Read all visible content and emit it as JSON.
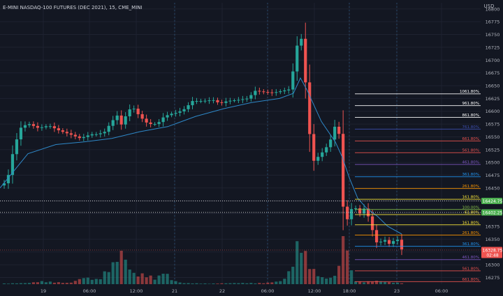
{
  "header": {
    "title": "E-MINI NASDAQ-100 FUTURES (DEC 2021), 15, CME_MINI"
  },
  "colors": {
    "background": "#131722",
    "grid": "#1e2230",
    "up": "#26a69a",
    "down": "#ef5350",
    "ma": "#2e88c8",
    "axis_text": "#b2b5be"
  },
  "chart_data": {
    "type": "candlestick",
    "y_axis": {
      "unit": "USD",
      "ylim": [
        16262,
        16812
      ],
      "ticks": [
        16800,
        16775,
        16750,
        16725,
        16700,
        16675,
        16650,
        16625,
        16600,
        16575,
        16550,
        16525,
        16500,
        16475,
        16450,
        16425,
        16400,
        16375,
        16350,
        16325,
        16300,
        16275
      ]
    },
    "x_axis": {
      "ticks": [
        "19",
        "06:00",
        "12:00",
        "21",
        "06:00",
        "22",
        "06:00",
        "12:00",
        "18:00",
        "23",
        "06:00"
      ]
    },
    "price_labels": [
      {
        "value": 16424.75,
        "text": "16424.75",
        "color": "#4caf50"
      },
      {
        "value": 16402.25,
        "text": "16402.25",
        "color": "#4caf50"
      },
      {
        "value": 16328.75,
        "text": "16328.75",
        "subtext": "02:48",
        "color": "#ef5350"
      }
    ],
    "fib_levels": [
      {
        "label": "1061.80%",
        "value": 16634,
        "color": "#ffffff"
      },
      {
        "label": "961.80%",
        "value": 16611,
        "color": "#ffffff"
      },
      {
        "label": "861.80%",
        "value": 16588,
        "color": "#ffffff"
      },
      {
        "label": "761.80%",
        "value": 16565,
        "color": "#3f51b5"
      },
      {
        "label": "661.80%",
        "value": 16542,
        "color": "#ef5350"
      },
      {
        "label": "561.80%",
        "value": 16519,
        "color": "#ef5350"
      },
      {
        "label": "461.80%",
        "value": 16496,
        "color": "#7e57c2"
      },
      {
        "label": "361.80%",
        "value": 16472,
        "color": "#2196f3"
      },
      {
        "label": "261.80%",
        "value": 16449,
        "color": "#ff9800"
      },
      {
        "label": "161.80%",
        "value": 16428,
        "color": "#ffeb3b"
      },
      {
        "label": "100.00%",
        "value": 16408,
        "color": "#8bc34a"
      },
      {
        "label": "61.80%",
        "value": 16398,
        "color": "#ffeb3b"
      },
      {
        "label": "161.80%",
        "value": 16378,
        "color": "#ffeb3b"
      },
      {
        "label": "261.80%",
        "value": 16358,
        "color": "#ff9800"
      },
      {
        "label": "361.80%",
        "value": 16336,
        "color": "#2196f3"
      },
      {
        "label": "461.80%",
        "value": 16310,
        "color": "#7e57c2"
      },
      {
        "label": "561.80%",
        "value": 16288,
        "color": "#ef5350"
      },
      {
        "label": "661.80%",
        "value": 16267,
        "color": "#ef5350"
      }
    ],
    "close_anchors": [
      [
        0,
        16455
      ],
      [
        10,
        16462
      ],
      [
        20,
        16530
      ],
      [
        30,
        16568
      ],
      [
        40,
        16576
      ],
      [
        55,
        16567
      ],
      [
        70,
        16572
      ],
      [
        85,
        16562
      ],
      [
        100,
        16555
      ],
      [
        115,
        16547
      ],
      [
        130,
        16555
      ],
      [
        140,
        16555
      ],
      [
        150,
        16560
      ],
      [
        160,
        16580
      ],
      [
        168,
        16592
      ],
      [
        175,
        16570
      ],
      [
        182,
        16600
      ],
      [
        190,
        16608
      ],
      [
        200,
        16590
      ],
      [
        212,
        16575
      ],
      [
        225,
        16575
      ],
      [
        235,
        16590
      ],
      [
        245,
        16595
      ],
      [
        255,
        16598
      ],
      [
        265,
        16605
      ],
      [
        275,
        16620
      ],
      [
        290,
        16620
      ],
      [
        305,
        16622
      ],
      [
        315,
        16615
      ],
      [
        325,
        16620
      ],
      [
        340,
        16622
      ],
      [
        355,
        16625
      ],
      [
        365,
        16640
      ],
      [
        375,
        16638
      ],
      [
        390,
        16636
      ],
      [
        405,
        16640
      ],
      [
        415,
        16643
      ],
      [
        422,
        16700
      ],
      [
        428,
        16752
      ],
      [
        433,
        16736
      ],
      [
        437,
        16660
      ],
      [
        441,
        16600
      ],
      [
        446,
        16500
      ],
      [
        452,
        16506
      ],
      [
        458,
        16515
      ],
      [
        465,
        16525
      ],
      [
        472,
        16540
      ],
      [
        477,
        16560
      ],
      [
        481,
        16578
      ],
      [
        485,
        16560
      ],
      [
        490,
        16425
      ],
      [
        494,
        16385
      ],
      [
        498,
        16390
      ],
      [
        504,
        16412
      ],
      [
        510,
        16410
      ],
      [
        515,
        16400
      ],
      [
        520,
        16412
      ],
      [
        526,
        16400
      ],
      [
        530,
        16380
      ],
      [
        535,
        16360
      ],
      [
        540,
        16340
      ],
      [
        545,
        16345
      ],
      [
        550,
        16350
      ],
      [
        556,
        16340
      ],
      [
        562,
        16345
      ],
      [
        568,
        16352
      ],
      [
        575,
        16330
      ]
    ],
    "ma_points": [
      [
        0,
        16450
      ],
      [
        40,
        16517
      ],
      [
        80,
        16535
      ],
      [
        120,
        16540
      ],
      [
        160,
        16547
      ],
      [
        200,
        16560
      ],
      [
        240,
        16570
      ],
      [
        280,
        16590
      ],
      [
        320,
        16605
      ],
      [
        360,
        16617
      ],
      [
        400,
        16625
      ],
      [
        420,
        16635
      ],
      [
        430,
        16665
      ],
      [
        440,
        16640
      ],
      [
        460,
        16580
      ],
      [
        480,
        16540
      ],
      [
        490,
        16510
      ],
      [
        500,
        16470
      ],
      [
        512,
        16430
      ],
      [
        525,
        16410
      ],
      [
        540,
        16395
      ],
      [
        555,
        16375
      ],
      [
        575,
        16360
      ]
    ],
    "volume_anchors": [
      [
        0,
        1
      ],
      [
        40,
        2
      ],
      [
        60,
        5
      ],
      [
        100,
        2
      ],
      [
        120,
        12
      ],
      [
        140,
        8
      ],
      [
        165,
        40
      ],
      [
        175,
        60
      ],
      [
        185,
        28
      ],
      [
        195,
        15
      ],
      [
        205,
        18
      ],
      [
        215,
        14
      ],
      [
        225,
        10
      ],
      [
        235,
        25
      ],
      [
        245,
        8
      ],
      [
        260,
        2
      ],
      [
        300,
        1
      ],
      [
        340,
        2
      ],
      [
        380,
        2
      ],
      [
        405,
        6
      ],
      [
        415,
        25
      ],
      [
        422,
        45
      ],
      [
        428,
        90
      ],
      [
        433,
        70
      ],
      [
        438,
        50
      ],
      [
        446,
        30
      ],
      [
        452,
        20
      ],
      [
        460,
        12
      ],
      [
        470,
        10
      ],
      [
        480,
        15
      ],
      [
        486,
        40
      ],
      [
        490,
        70
      ],
      [
        495,
        110
      ],
      [
        500,
        30
      ],
      [
        510,
        5
      ],
      [
        520,
        4
      ],
      [
        540,
        6
      ],
      [
        560,
        3
      ],
      [
        575,
        2
      ]
    ]
  }
}
